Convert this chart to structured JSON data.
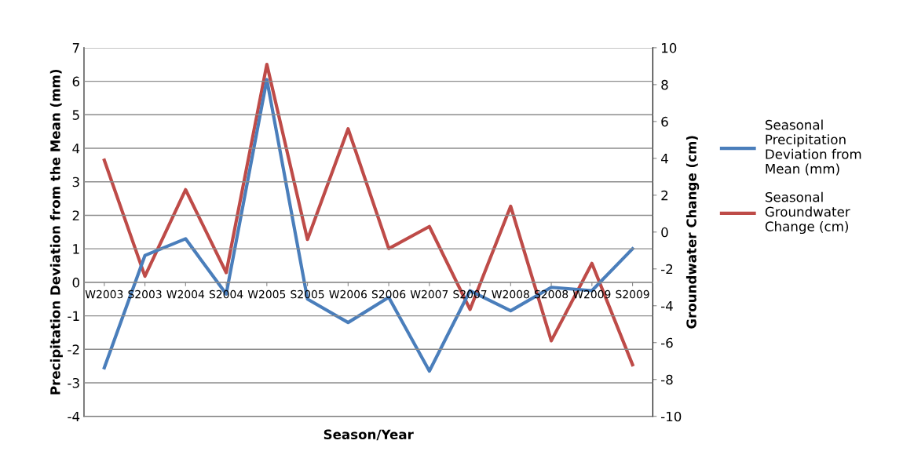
{
  "chart_data": {
    "type": "line",
    "xlabel": "Season/Year",
    "ylabel": "Precipitation Deviation from the Mean (mm)",
    "y2label": "Groundwater Change (cm)",
    "categories": [
      "W2003",
      "S2003",
      "W2004",
      "S2004",
      "W2005",
      "S2005",
      "W2006",
      "S2006",
      "W2007",
      "S2007",
      "W2008",
      "S2008",
      "W2009",
      "S2009"
    ],
    "series": [
      {
        "name": "Seasonal Precipitation Deviation from Mean (mm)",
        "color": "#4a7ebb",
        "values": [
          -2.55,
          0.8,
          1.3,
          -0.35,
          6.05,
          -0.5,
          -1.2,
          -0.45,
          -2.65,
          -0.25,
          -0.85,
          -0.15,
          -0.25,
          1.0
        ]
      },
      {
        "name": "Seasonal Groundwater Change (cm)",
        "color": "#be4b48",
        "axis": "y2",
        "values": [
          3.9,
          -2.4,
          2.3,
          -2.2,
          9.1,
          -0.4,
          5.6,
          -0.9,
          0.3,
          -4.2,
          1.4,
          -5.9,
          -1.7,
          -7.2
        ]
      }
    ],
    "ylim": [
      -4,
      7
    ],
    "yticks": [
      -4,
      -3,
      -2,
      -1,
      0,
      1,
      2,
      3,
      4,
      5,
      6,
      7
    ],
    "y2lim": [
      -10,
      10
    ],
    "y2ticks": [
      -10,
      -8,
      -6,
      -4,
      -2,
      0,
      2,
      4,
      6,
      8,
      10
    ],
    "grid": "y",
    "legend": "right",
    "marker": "none",
    "line_style": "solid"
  }
}
